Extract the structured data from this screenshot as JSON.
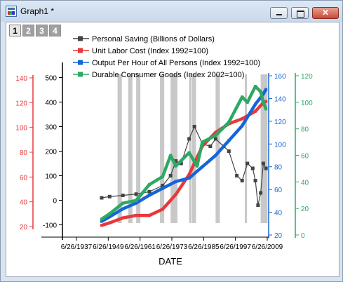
{
  "window": {
    "title": "Graph1 *",
    "close_glyph": "✕",
    "icons": [
      "app-graph-icon",
      "minimize-icon",
      "maximize-icon",
      "close-icon"
    ]
  },
  "layers": [
    "1",
    "2",
    "3",
    "4"
  ],
  "chart_data": {
    "type": "line",
    "xlabel": "DATE",
    "x_ticks": [
      "6/26/1937",
      "6/26/1949",
      "6/26/1961",
      "6/26/1973",
      "6/26/1985",
      "6/26/1997",
      "6/26/2009"
    ],
    "xlim": [
      "1937-06-26",
      "2009-06-26"
    ],
    "recession_bands": [
      [
        1953,
        1954
      ],
      [
        1957,
        1958
      ],
      [
        1960,
        1961
      ],
      [
        1969,
        1970
      ],
      [
        1973,
        1975
      ],
      [
        1980,
        1980
      ],
      [
        1981,
        1982
      ],
      [
        1990,
        1991
      ],
      [
        2001,
        2001
      ],
      [
        2007,
        2009
      ]
    ],
    "axes": {
      "red": {
        "ticks": [
          "20",
          "40",
          "60",
          "80",
          "100",
          "120",
          "140"
        ],
        "ylim": [
          20,
          140
        ],
        "color": "#e8383b"
      },
      "black": {
        "ticks": [
          "-100",
          "0",
          "100",
          "200",
          "300",
          "400",
          "500"
        ],
        "ylim": [
          -150,
          550
        ],
        "color": "#000000"
      },
      "blue": {
        "ticks": [
          "20",
          "40",
          "60",
          "80",
          "100",
          "120",
          "140",
          "160"
        ],
        "ylim": [
          20,
          160
        ],
        "color": "#1565d8"
      },
      "green": {
        "ticks": [
          "0",
          "20",
          "40",
          "60",
          "80",
          "100",
          "120"
        ],
        "ylim": [
          0,
          120
        ],
        "color": "#2ea862"
      }
    },
    "series": [
      {
        "name": "Personal Saving (Billions of Dollars)",
        "color": "#444444",
        "axis": "black",
        "x": [
          1947,
          1950,
          1955,
          1960,
          1965,
          1970,
          1973,
          1975,
          1977,
          1980,
          1982,
          1985,
          1988,
          1990,
          1993,
          1995,
          1998,
          2000,
          2002,
          2004,
          2005,
          2006,
          2007,
          2008,
          2009
        ],
        "y": [
          10,
          15,
          20,
          25,
          35,
          60,
          100,
          160,
          150,
          250,
          300,
          230,
          220,
          250,
          220,
          200,
          100,
          80,
          150,
          130,
          80,
          -20,
          30,
          150,
          130
        ]
      },
      {
        "name": "Unit Labor Cost (Index 1992=100)",
        "color": "#e8383b",
        "axis": "red",
        "x": [
          1947,
          1950,
          1955,
          1960,
          1965,
          1970,
          1975,
          1980,
          1985,
          1990,
          1995,
          2000,
          2005,
          2008,
          2009
        ],
        "y": [
          21,
          23,
          27,
          29,
          29,
          34,
          46,
          62,
          85,
          96,
          103,
          107,
          113,
          120,
          121
        ]
      },
      {
        "name": "Output Per Hour of All Persons (Index 1992=100)",
        "color": "#1565d8",
        "axis": "blue",
        "x": [
          1947,
          1950,
          1955,
          1960,
          1965,
          1970,
          1975,
          1980,
          1985,
          1990,
          1995,
          2000,
          2005,
          2008,
          2009
        ],
        "y": [
          32,
          36,
          43,
          48,
          55,
          61,
          67,
          70,
          80,
          90,
          103,
          116,
          135,
          144,
          148
        ]
      },
      {
        "name": "Durable Consumer Goods (Index 2002=100)",
        "color": "#2ea862",
        "axis": "green",
        "x": [
          1947,
          1950,
          1955,
          1960,
          1965,
          1970,
          1973,
          1975,
          1980,
          1983,
          1985,
          1990,
          1995,
          2000,
          2002,
          2005,
          2007,
          2008,
          2009
        ],
        "y": [
          12,
          16,
          24,
          26,
          38,
          44,
          60,
          52,
          62,
          52,
          70,
          75,
          85,
          104,
          100,
          112,
          108,
          100,
          95
        ]
      }
    ]
  }
}
